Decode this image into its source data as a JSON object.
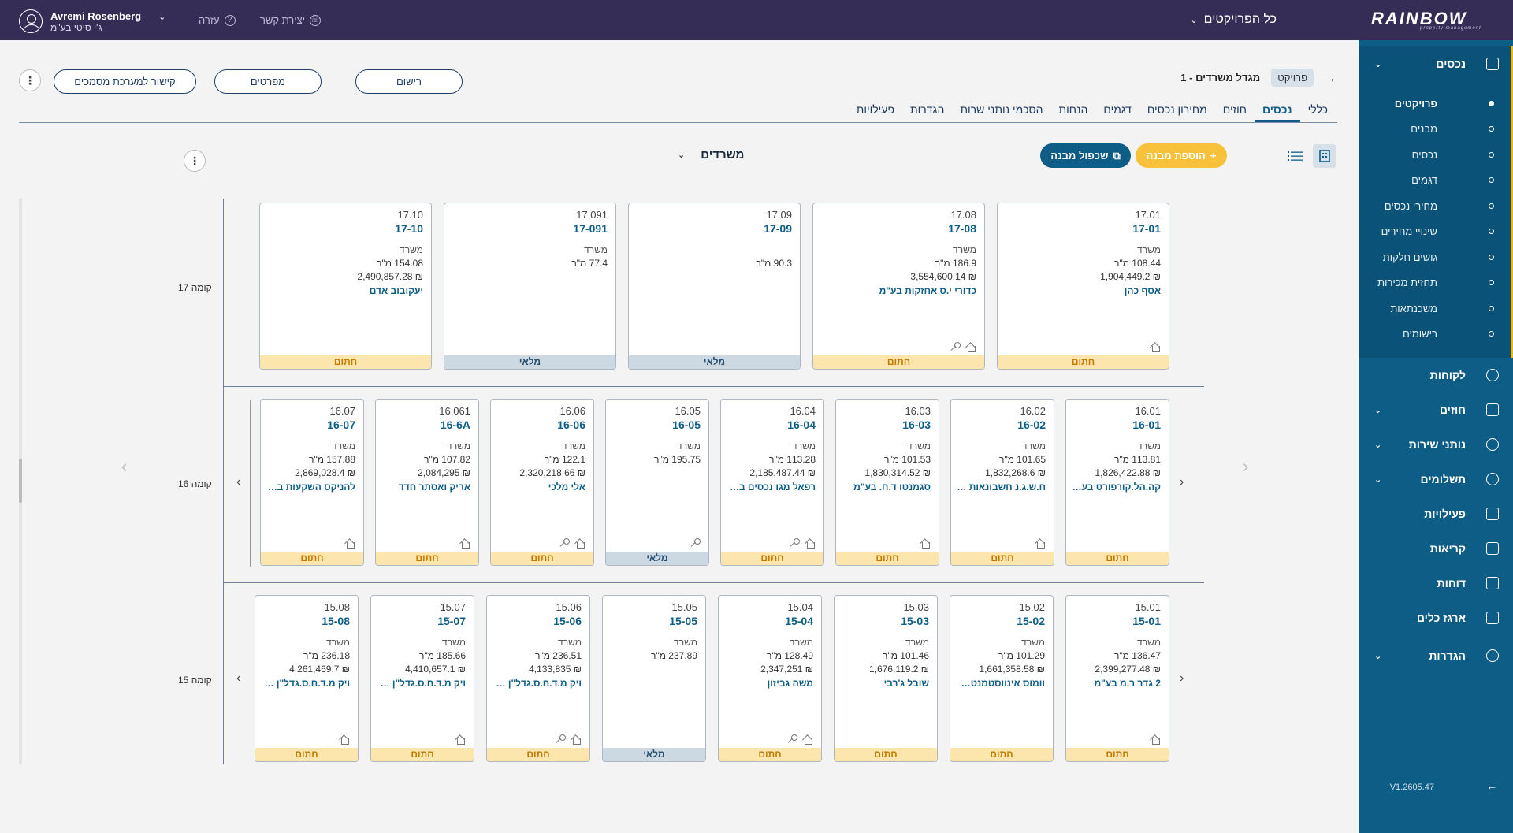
{
  "topbar": {
    "logo_main": "RAINBOW",
    "logo_sub": "property management",
    "projects_label": "כל הפרויקטים",
    "contact_label": "יצירת קשר",
    "help_label": "עזרה",
    "user_name": "Avremi Rosenberg",
    "user_company": "ג'י סיטי בע\"מ"
  },
  "sidebar": {
    "assets": "נכסים",
    "sub": [
      "פרויקטים",
      "מבנים",
      "נכסים",
      "דגמים",
      "מחירי נכסים",
      "שינויי מחירים",
      "גושים חלקות",
      "תחזית מכירות",
      "משכנתאות",
      "רישומים"
    ],
    "customers": "לקוחות",
    "contracts": "חוזים",
    "providers": "נותני שירות",
    "payments": "תשלומים",
    "activities": "פעילויות",
    "calls": "קריאות",
    "reports": "דוחות",
    "toolbox": "ארגז כלים",
    "settings": "הגדרות",
    "version": "V1.2605.47"
  },
  "header": {
    "back": "→",
    "crumb_pill": "פרויקט",
    "title": "מגדל משרדים - 1",
    "btn_register": "רישום",
    "btn_specs": "מפרטים",
    "btn_docs": "קישור למערכת מסמכים"
  },
  "tabs": [
    "כללי",
    "נכסים",
    "חוזים",
    "מחירון נכסים",
    "דגמים",
    "הנחות",
    "הסכמי נותני שרות",
    "הגדרות",
    "פעילויות"
  ],
  "toolbar": {
    "add_building": "הוספת מבנה",
    "dup_building": "שכפול מבנה",
    "type_select": "משרדים"
  },
  "floors": [
    {
      "label": "קומה 17",
      "units": [
        {
          "num": "17.01",
          "code": "17-01",
          "type": "משרד",
          "area": "108.44 מ\"ר",
          "price": "₪ 1,904,449.2",
          "owner": "אסף כהן",
          "icons": [
            "home"
          ],
          "status": "חתום"
        },
        {
          "num": "17.08",
          "code": "17-08",
          "type": "משרד",
          "area": "186.9 מ\"ר",
          "price": "₪ 3,554,600.14",
          "owner": "כדורי י.ס אחזקות בע\"מ",
          "icons": [
            "key",
            "home"
          ],
          "status": "חתום"
        },
        {
          "num": "17.09",
          "code": "17-09",
          "type": "",
          "area": "90.3 מ\"ר",
          "price": "",
          "owner": "",
          "icons": [],
          "status": "מלאי"
        },
        {
          "num": "17.091",
          "code": "17-091",
          "type": "משרד",
          "area": "77.4 מ\"ר",
          "price": "",
          "owner": "",
          "icons": [],
          "status": "מלאי"
        },
        {
          "num": "17.10",
          "code": "17-10",
          "type": "משרד",
          "area": "154.08 מ\"ר",
          "price": "₪ 2,490,857.28",
          "owner": "יעקובוב אדם",
          "icons": [],
          "status": "חתום"
        }
      ]
    },
    {
      "label": "קומה 16",
      "units": [
        {
          "num": "16.01",
          "code": "16-01",
          "type": "משרד",
          "area": "113.81 מ\"ר",
          "price": "₪ 1,826,422.88",
          "owner": "קה.הל.קורפורט בע\"מ",
          "icons": [],
          "status": "חתום"
        },
        {
          "num": "16.02",
          "code": "16-02",
          "type": "משרד",
          "area": "101.65 מ\"ר",
          "price": "₪ 1,832,268.6",
          "owner": "ח.ש.ג.נ חשבונאות בע\"מ",
          "icons": [
            "home"
          ],
          "status": "חתום"
        },
        {
          "num": "16.03",
          "code": "16-03",
          "type": "משרד",
          "area": "101.53 מ\"ר",
          "price": "₪ 1,830,314.52",
          "owner": "סגמנטו ד.ח. בע\"מ",
          "icons": [
            "home"
          ],
          "status": "חתום"
        },
        {
          "num": "16.04",
          "code": "16-04",
          "type": "משרד",
          "area": "113.28 מ\"ר",
          "price": "₪ 2,185,487.44",
          "owner": "רפאל מגו נכסים בע\"מ",
          "icons": [
            "key",
            "home"
          ],
          "status": "חתום"
        },
        {
          "num": "16.05",
          "code": "16-05",
          "type": "משרד",
          "area": "195.75 מ\"ר",
          "price": "",
          "owner": "",
          "icons": [
            "key"
          ],
          "status": "מלאי"
        },
        {
          "num": "16.06",
          "code": "16-06",
          "type": "משרד",
          "area": "122.1 מ\"ר",
          "price": "₪ 2,320,218.66",
          "owner": "אלי מלכי",
          "icons": [
            "key",
            "home"
          ],
          "status": "חתום"
        },
        {
          "num": "16.061",
          "code": "16-6A",
          "type": "משרד",
          "area": "107.82 מ\"ר",
          "price": "₪ 2,084,295",
          "owner": "אריק ואסתר חדד",
          "icons": [
            "home"
          ],
          "status": "חתום"
        },
        {
          "num": "16.07",
          "code": "16-07",
          "type": "משרד",
          "area": "157.88 מ\"ר",
          "price": "₪ 2,869,028.4",
          "owner": "להניקס השקעות בע\"מ",
          "icons": [
            "home"
          ],
          "status": "חתום"
        }
      ]
    },
    {
      "label": "קומה 15",
      "units": [
        {
          "num": "15.01",
          "code": "15-01",
          "type": "משרד",
          "area": "136.47 מ\"ר",
          "price": "₪ 2,399,277.48",
          "owner": "2 גדר ר.מ בע\"מ",
          "icons": [
            "home"
          ],
          "status": "חתום"
        },
        {
          "num": "15.02",
          "code": "15-02",
          "type": "משרד",
          "area": "101.29 מ\"ר",
          "price": "₪ 1,661,358.58",
          "owner": "וומוס אינווסטמנטס בע\"מ",
          "icons": [],
          "status": "חתום"
        },
        {
          "num": "15.03",
          "code": "15-03",
          "type": "משרד",
          "area": "101.46 מ\"ר",
          "price": "₪ 1,676,119.2",
          "owner": "שובל ג'רבי",
          "icons": [],
          "status": "חתום"
        },
        {
          "num": "15.04",
          "code": "15-04",
          "type": "משרד",
          "area": "128.49 מ\"ר",
          "price": "₪ 2,347,251",
          "owner": "משה גביזון",
          "icons": [
            "key",
            "home"
          ],
          "status": "חתום"
        },
        {
          "num": "15.05",
          "code": "15-05",
          "type": "משרד",
          "area": "237.89 מ\"ר",
          "price": "",
          "owner": "",
          "icons": [],
          "status": "מלאי"
        },
        {
          "num": "15.06",
          "code": "15-06",
          "type": "משרד",
          "area": "236.51 מ\"ר",
          "price": "₪ 4,133,835",
          "owner": "ויק מ.ד.ח.ס.גדל\"ן בע\"מ",
          "icons": [
            "key",
            "home"
          ],
          "status": "חתום"
        },
        {
          "num": "15.07",
          "code": "15-07",
          "type": "משרד",
          "area": "185.66 מ\"ר",
          "price": "₪ 4,410,657.1",
          "owner": "ויק מ.ד.ח.ס.גדל\"ן בע\"מ",
          "icons": [
            "home"
          ],
          "status": "חתום"
        },
        {
          "num": "15.08",
          "code": "15-08",
          "type": "משרד",
          "area": "236.18 מ\"ר",
          "price": "₪ 4,261,469.7",
          "owner": "ויק מ.ד.ח.ס.גדל\"ן בע\"מ",
          "icons": [
            "home"
          ],
          "status": "חתום"
        }
      ]
    }
  ]
}
